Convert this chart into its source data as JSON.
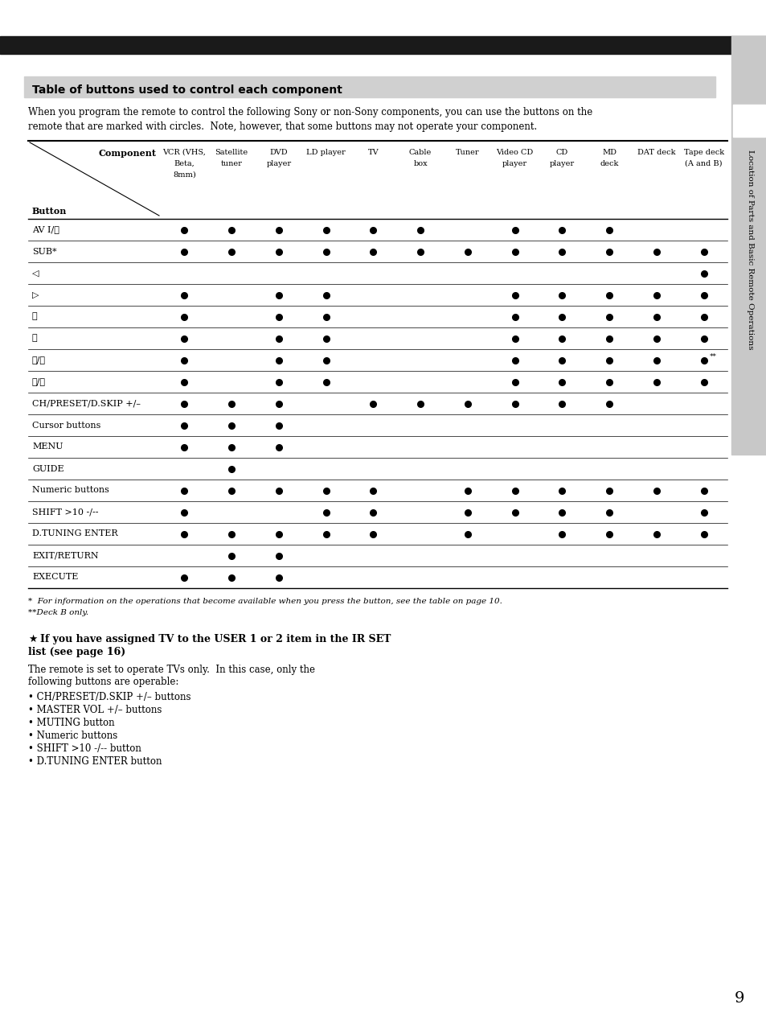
{
  "title_box": "Table of buttons used to control each component",
  "intro_text": "When you program the remote to control the following Sony or non-Sony components, you can use the buttons on the\nremote that are marked with circles.  Note, however, that some buttons may not operate your component.",
  "col_headers": [
    "VCR (VHS,\nBeta,\n8mm)",
    "Satellite\ntuner",
    "DVD\nplayer",
    "LD player",
    "TV",
    "Cable\nbox",
    "Tuner",
    "Video CD\nplayer",
    "CD\nplayer",
    "MD\ndeck",
    "DAT deck",
    "Tape deck\n(A and B)"
  ],
  "row_labels": [
    "AV I/⏻",
    "SUB*",
    "◁",
    "▷",
    "⏸",
    "⏹",
    "⏮/⏭",
    "⏪/⏩",
    "CH/PRESET/D.SKIP +/–",
    "Cursor buttons",
    "MENU",
    "GUIDE",
    "Numeric buttons",
    "SHIFT >10 -/--",
    "D.TUNING ENTER",
    "EXIT/RETURN",
    "EXECUTE"
  ],
  "dots": [
    [
      1,
      1,
      1,
      1,
      1,
      1,
      0,
      1,
      1,
      1,
      0,
      0
    ],
    [
      1,
      1,
      1,
      1,
      1,
      1,
      1,
      1,
      1,
      1,
      1,
      1
    ],
    [
      0,
      0,
      0,
      0,
      0,
      0,
      0,
      0,
      0,
      0,
      0,
      1
    ],
    [
      1,
      0,
      1,
      1,
      0,
      0,
      0,
      1,
      1,
      1,
      1,
      1
    ],
    [
      1,
      0,
      1,
      1,
      0,
      0,
      0,
      1,
      1,
      1,
      1,
      1
    ],
    [
      1,
      0,
      1,
      1,
      0,
      0,
      0,
      1,
      1,
      1,
      1,
      1
    ],
    [
      1,
      0,
      1,
      1,
      0,
      0,
      0,
      1,
      1,
      1,
      1,
      2
    ],
    [
      1,
      0,
      1,
      1,
      0,
      0,
      0,
      1,
      1,
      1,
      1,
      1
    ],
    [
      1,
      1,
      1,
      0,
      1,
      1,
      1,
      1,
      1,
      1,
      0,
      0
    ],
    [
      1,
      1,
      1,
      0,
      0,
      0,
      0,
      0,
      0,
      0,
      0,
      0
    ],
    [
      1,
      1,
      1,
      0,
      0,
      0,
      0,
      0,
      0,
      0,
      0,
      0
    ],
    [
      0,
      1,
      0,
      0,
      0,
      0,
      0,
      0,
      0,
      0,
      0,
      0
    ],
    [
      1,
      1,
      1,
      1,
      1,
      0,
      1,
      1,
      1,
      1,
      1,
      1
    ],
    [
      1,
      0,
      0,
      1,
      1,
      0,
      1,
      1,
      1,
      1,
      0,
      1
    ],
    [
      1,
      1,
      1,
      1,
      1,
      0,
      1,
      0,
      1,
      1,
      1,
      1
    ],
    [
      0,
      1,
      1,
      0,
      0,
      0,
      0,
      0,
      0,
      0,
      0,
      0
    ],
    [
      1,
      1,
      1,
      0,
      0,
      0,
      0,
      0,
      0,
      0,
      0,
      0
    ]
  ],
  "footnote1": "*  For information on the operations that become available when you press the button, see the table on page 10.",
  "footnote2": "**Deck B only.",
  "tip_header": "☀  If you have assigned TV to the USER 1 or 2 item in the IR SET\nlist (see page 16)",
  "tip_body": "The remote is set to operate TVs only.  In this case, only the\nfollowing buttons are operable:",
  "tip_bullets": [
    "CH/PRESET/D.SKIP +/– buttons",
    "MASTER VOL +/– buttons",
    "MUTING button",
    "Numeric buttons",
    "SHIFT >10 -/-- button",
    "D.TUNING ENTER button"
  ],
  "sidebar_text": "Location of Parts and Basic Remote Operations",
  "page_number": "9",
  "top_bar_color": "#1a1a1a",
  "header_bg_color": "#d0d0d0",
  "sidebar_bg_color": "#c8c8c8"
}
